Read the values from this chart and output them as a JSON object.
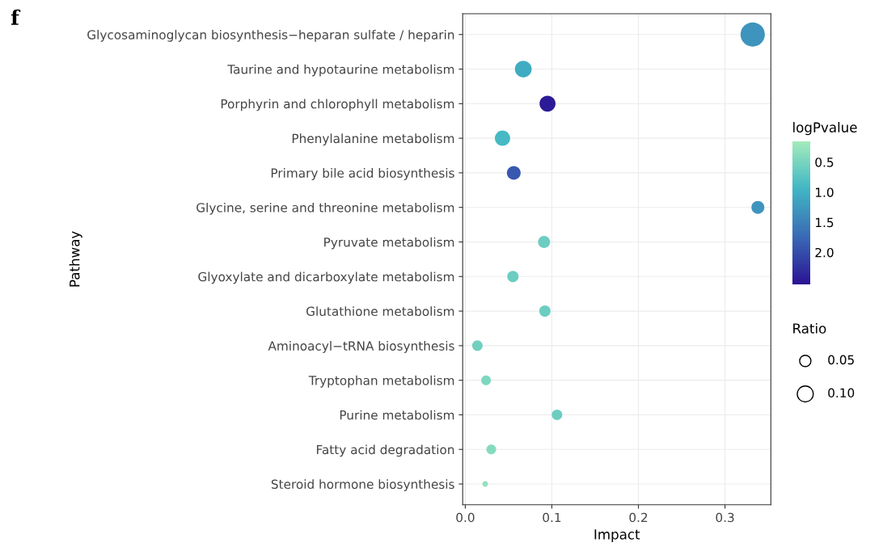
{
  "chart_data": {
    "type": "bubble",
    "xlabel": "Impact",
    "ylabel": "Pathway",
    "clabel": "logPvalue",
    "legend_title": "Ratio",
    "annotations": [
      "f"
    ],
    "categories": [
      "Glycosaminoglycan biosynthesis−heparan sulfate / heparin",
      "Taurine and hypotaurine metabolism",
      "Porphyrin and chlorophyll metabolism",
      "Phenylalanine metabolism",
      "Primary bile acid biosynthesis",
      "Glycine, serine and threonine metabolism",
      "Pyruvate metabolism",
      "Glyoxylate and dicarboxylate metabolism",
      "Glutathione metabolism",
      "Aminoacyl−tRNA biosynthesis",
      "Tryptophan metabolism",
      "Purine metabolism",
      "Fatty acid degradation",
      "Steroid hormone biosynthesis"
    ],
    "values": [
      0.332,
      0.067,
      0.095,
      0.043,
      0.056,
      0.338,
      0.091,
      0.055,
      0.092,
      0.014,
      0.024,
      0.106,
      0.03,
      0.023
    ],
    "sizes": [
      0.23,
      0.11,
      0.1,
      0.092,
      0.074,
      0.065,
      0.057,
      0.05,
      0.05,
      0.043,
      0.037,
      0.043,
      0.037,
      0.0125
    ],
    "size_legend": [
      {
        "value": 0.05,
        "label": "0.05"
      },
      {
        "value": 0.1,
        "label": "0.10"
      }
    ],
    "cvalues": [
      1.3,
      1.05,
      2.45,
      0.9,
      1.9,
      1.3,
      0.6,
      0.6,
      0.6,
      0.55,
      0.45,
      0.6,
      0.4,
      0.3
    ],
    "clim": [
      2.53,
      0.15
    ],
    "cticks": [
      {
        "value": 0.5,
        "label": "0.5"
      },
      {
        "value": 1.0,
        "label": "1.0"
      },
      {
        "value": 1.5,
        "label": "1.5"
      },
      {
        "value": 2.0,
        "label": "2.0"
      }
    ],
    "xlim": [
      -0.003,
      0.353
    ],
    "xticks": [
      {
        "value": 0,
        "label": "0.0"
      },
      0.1,
      0.2,
      0.3
    ],
    "grid": true,
    "orientation": "horizontal"
  }
}
